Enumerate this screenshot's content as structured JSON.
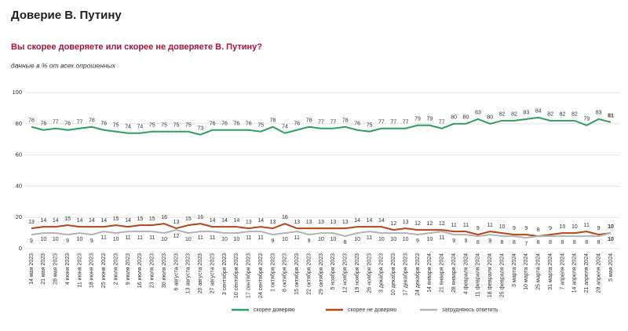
{
  "chart_data": {
    "type": "line",
    "title": "Доверие В. Путину",
    "subtitle": "Вы скорее доверяете или скорее не доверяете В. Путину?",
    "note": "данные в % от всех опрошенных",
    "categories": [
      "14 мая 2023",
      "21 мая 2023",
      "28 мая 2023",
      "4 июня 2023",
      "11 июня 2023",
      "18 июня 2023",
      "25 июня 2023",
      "2 июля 2023",
      "9 июля 2023",
      "16 июля 2023",
      "23 июля 2023",
      "30 июля 2023",
      "6 августа 2023",
      "13 августа 2023",
      "20 августа 2023",
      "27 августа 2023",
      "3 сентября 2023",
      "10 сентября 2023",
      "17 сентября 2023",
      "24 сентября 2023",
      "1 октября 2023",
      "8 октября 2023",
      "15 октября 2023",
      "22 октября 2023",
      "29 октября 2023",
      "5 ноября 2023",
      "12 ноября 2023",
      "19 ноября 2023",
      "26 ноября 2023",
      "3 декабря 2023",
      "10 декабря 2023",
      "17 декабря 2023",
      "24 декабря 2023",
      "14 января 2024",
      "21 января 2024",
      "28 января 2024",
      "4 февраля 2024",
      "11 февраля 2024",
      "18 февраля 2024",
      "25 февраля 2024",
      "3 марта 2024",
      "10 марта 2024",
      "25 марта 2024",
      "31 марта 2024",
      "7 апреля 2024",
      "14 апреля 2024",
      "21 апреля 2024",
      "28 апреля 2024",
      "5 мая 2024"
    ],
    "series": [
      {
        "name": "скорее доверяю",
        "color": "#2e9e5e",
        "values": [
          78,
          76,
          77,
          76,
          77,
          78,
          76,
          75,
          74,
          74,
          75,
          75,
          75,
          75,
          73,
          76,
          76,
          76,
          76,
          75,
          78,
          74,
          76,
          78,
          77,
          77,
          78,
          76,
          75,
          77,
          77,
          77,
          79,
          79,
          77,
          80,
          80,
          83,
          80,
          82,
          82,
          83,
          84,
          82,
          82,
          82,
          79,
          83,
          81
        ]
      },
      {
        "name": "скорее не доверяю",
        "color": "#b5441a",
        "values": [
          13,
          14,
          14,
          15,
          14,
          14,
          14,
          15,
          14,
          15,
          15,
          16,
          13,
          15,
          16,
          14,
          14,
          14,
          13,
          14,
          13,
          16,
          13,
          13,
          13,
          13,
          13,
          14,
          14,
          14,
          12,
          13,
          12,
          12,
          12,
          11,
          11,
          9,
          11,
          10,
          9,
          9,
          8,
          9,
          10,
          10,
          11,
          9,
          10
        ]
      },
      {
        "name": "затрудняюсь ответить",
        "color": "#b3b3b3",
        "values": [
          9,
          10,
          10,
          9,
          10,
          9,
          11,
          10,
          11,
          11,
          11,
          10,
          12,
          10,
          11,
          11,
          10,
          10,
          11,
          11,
          9,
          10,
          11,
          9,
          10,
          10,
          8,
          10,
          11,
          10,
          10,
          10,
          9,
          10,
          11,
          9,
          9,
          8,
          9,
          8,
          8,
          7,
          8,
          8,
          8,
          8,
          8,
          8,
          10
        ]
      }
    ],
    "ylim": [
      0,
      100
    ],
    "yticks": [
      0,
      20,
      40,
      60,
      80,
      100
    ],
    "grid": true
  }
}
